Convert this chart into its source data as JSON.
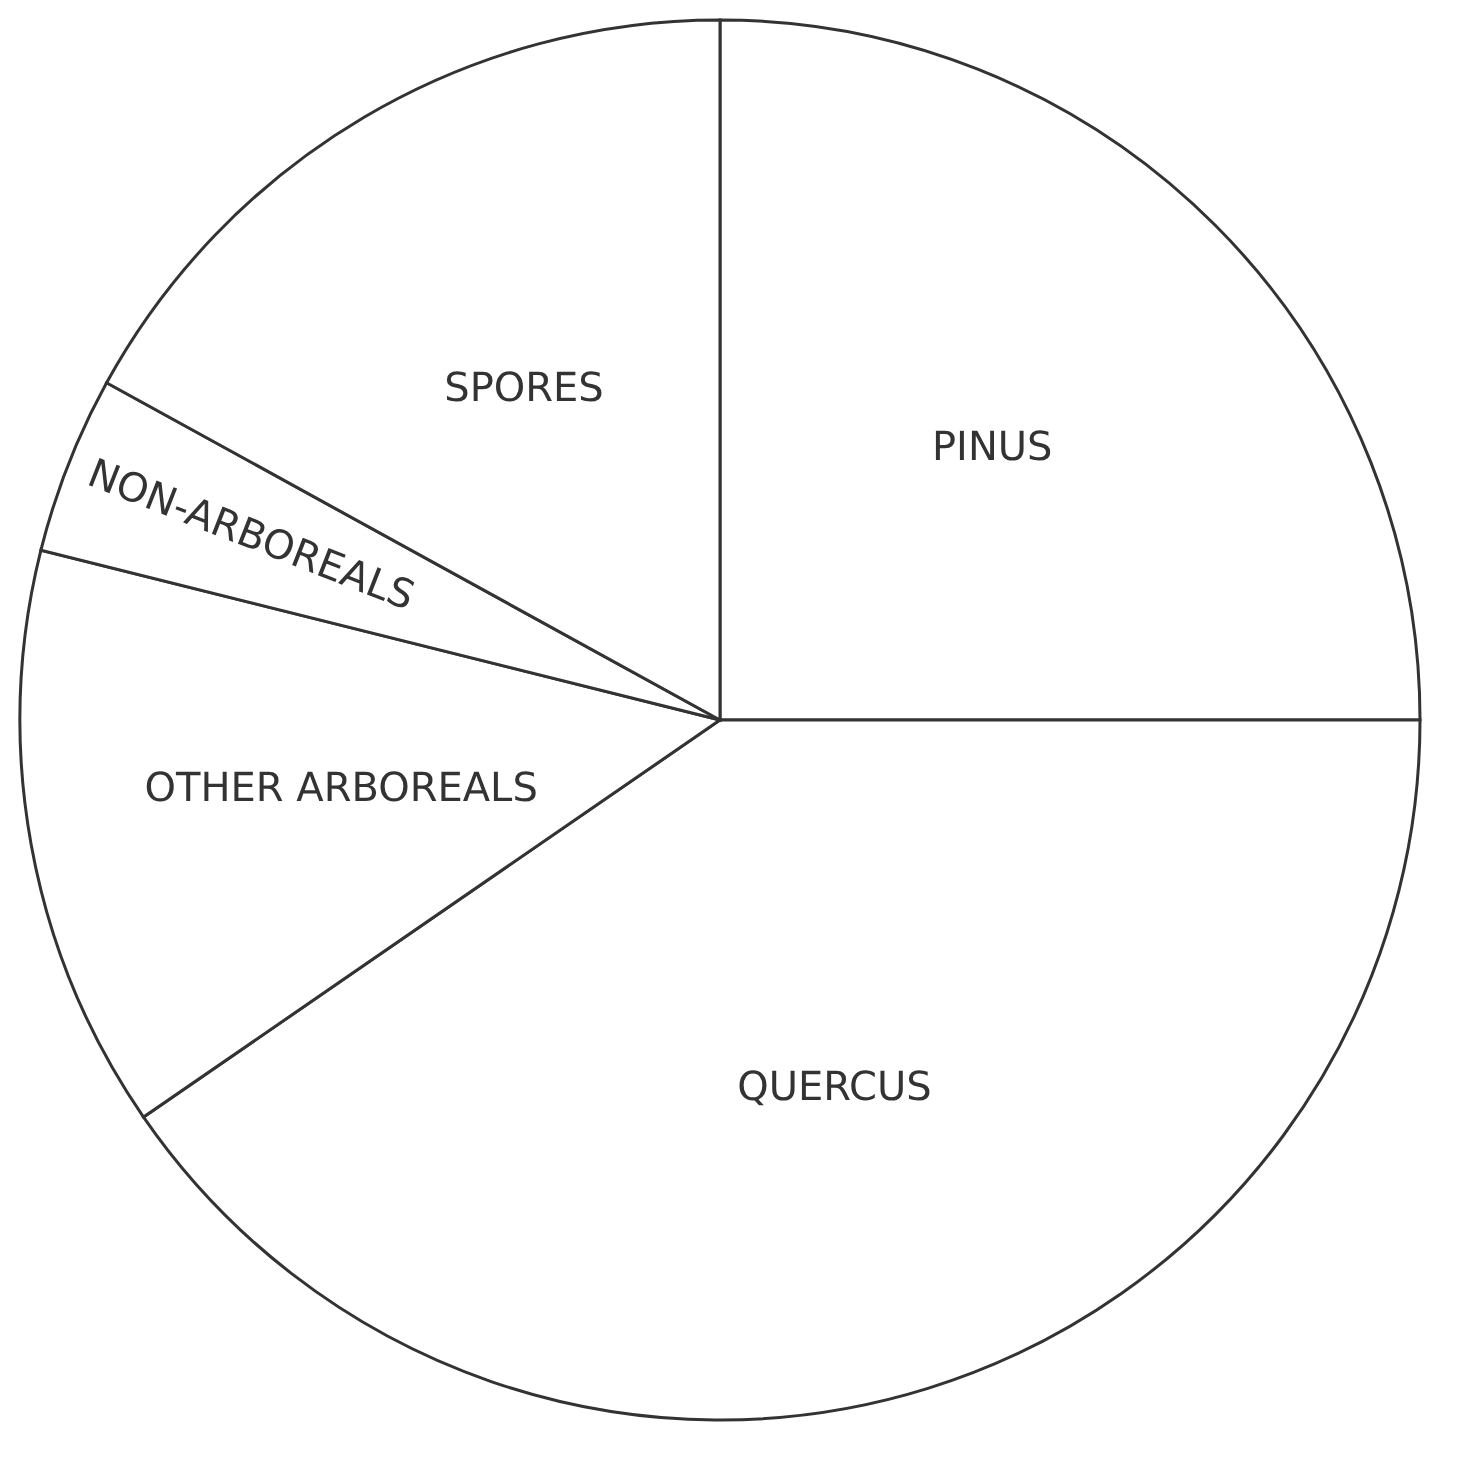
{
  "chart_data": {
    "type": "pie",
    "categories": [
      "PINUS",
      "QUERCUS",
      "OTHER ARBOREALS",
      "NON-ARBOREALS",
      "SPORES"
    ],
    "values": [
      25,
      40.4,
      13.5,
      4.1,
      17
    ],
    "colors": [
      "#ffffff",
      "#ffffff",
      "#ffffff",
      "#ffffff",
      "#ffffff"
    ],
    "legend": false
  }
}
